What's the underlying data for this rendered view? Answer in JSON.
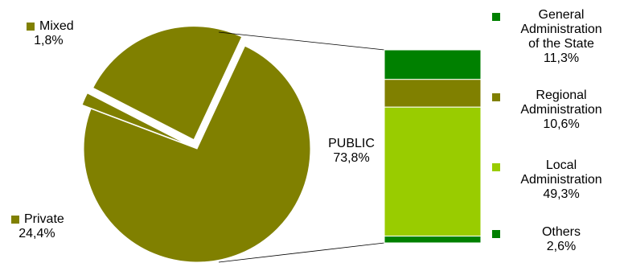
{
  "chart_data": [
    {
      "type": "pie",
      "slices": [
        {
          "name": "Mixed",
          "value": 1.8,
          "label": "1,8%",
          "color": "#808000"
        },
        {
          "name": "Private",
          "value": 24.4,
          "label": "24,4%",
          "color": "#808000"
        },
        {
          "name": "PUBLIC",
          "value": 73.8,
          "label": "73,8%",
          "color": "#808000"
        }
      ],
      "exploded": true
    },
    {
      "type": "bar",
      "stacked": true,
      "parent": "PUBLIC",
      "categories": [
        "General Administration of the State",
        "Regional Administration",
        "Local Administration",
        "Others"
      ],
      "lines": [
        [
          "General",
          "Administration",
          "of the State"
        ],
        [
          "Regional",
          "Administration"
        ],
        [
          "Local",
          "Administration"
        ],
        [
          "Others"
        ]
      ],
      "values": [
        11.3,
        10.6,
        49.3,
        2.6
      ],
      "labels": [
        "11,3%",
        "10,6%",
        "49,3%",
        "2,6%"
      ],
      "colors": [
        "#008000",
        "#808000",
        "#99cc00",
        "#008000"
      ],
      "legend": "right"
    }
  ]
}
